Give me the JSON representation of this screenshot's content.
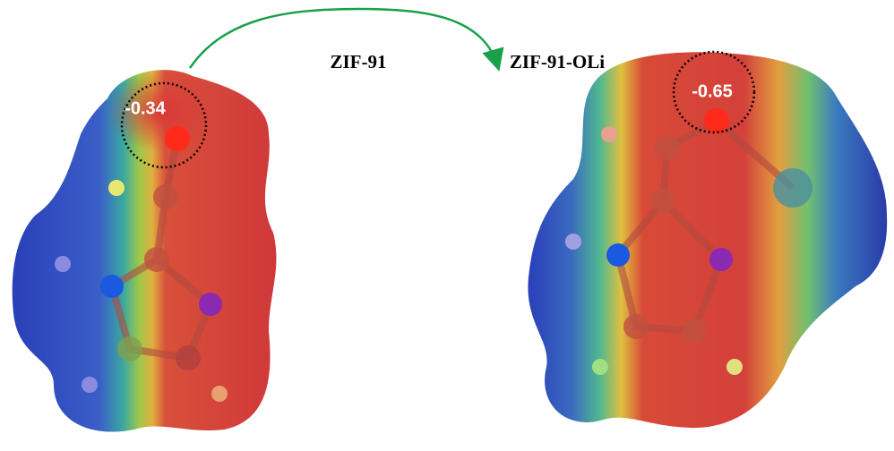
{
  "molecules": [
    {
      "label": "ZIF-91",
      "charge": "-0.34"
    },
    {
      "label": "ZIF-91-OLi",
      "charge": "-0.65"
    }
  ]
}
